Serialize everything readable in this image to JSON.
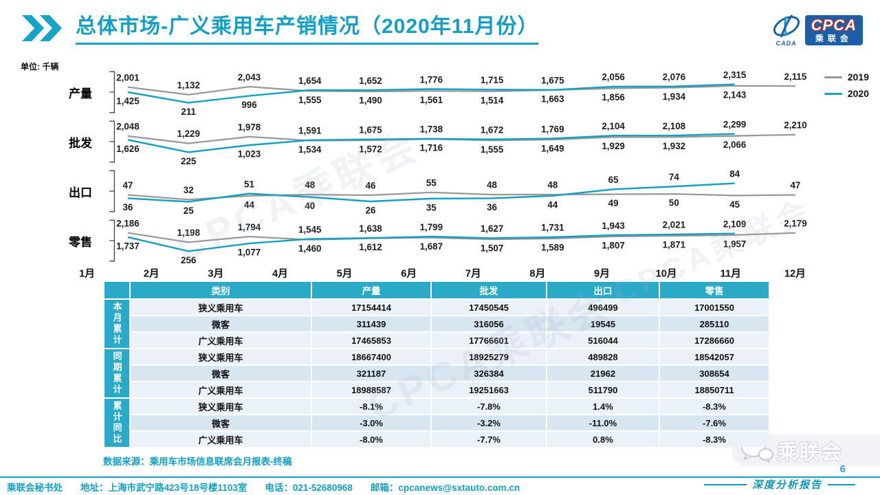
{
  "colors": {
    "accent": "#139fc4",
    "line2019": "#999999",
    "line2020": "#14a0c2",
    "tableHeader": "#2baac8",
    "rowLight": "#eaf2f9",
    "rowMid": "#d8e6f2",
    "logoBlue": "#1b5fa8"
  },
  "header": {
    "title": "总体市场-广义乘用车产销情况（2020年11月份）"
  },
  "logo": {
    "cpca": "CPCA",
    "cn": "乘联会",
    "cada": "CADA"
  },
  "unit_label": "单位: 千辆",
  "legend": [
    {
      "label": "2019",
      "color": "#999999"
    },
    {
      "label": "2020",
      "color": "#14a0c2"
    }
  ],
  "chart_data": {
    "type": "line",
    "ylabel": "千辆",
    "legend_position": "top-right",
    "grid": false,
    "x": [
      "1月",
      "2月",
      "3月",
      "4月",
      "5月",
      "6月",
      "7月",
      "8月",
      "9月",
      "10月",
      "11月",
      "12月"
    ],
    "sections": [
      {
        "name": "产量",
        "id": "production",
        "series": [
          {
            "name": "2019",
            "values": [
              2001,
              1132,
              2043,
              1555,
              1490,
              1561,
              1514,
              1663,
              1856,
              1934,
              2143,
              2115
            ]
          },
          {
            "name": "2020",
            "values": [
              1425,
              211,
              996,
              1654,
              1652,
              1776,
              1715,
              1675,
              2056,
              2076,
              2315
            ]
          }
        ]
      },
      {
        "name": "批发",
        "id": "wholesale",
        "series": [
          {
            "name": "2019",
            "values": [
              2048,
              1229,
              1978,
              1534,
              1572,
              1716,
              1555,
              1649,
              1929,
              1932,
              2066,
              2210
            ]
          },
          {
            "name": "2020",
            "values": [
              1626,
              225,
              1023,
              1591,
              1675,
              1738,
              1672,
              1769,
              2104,
              2108,
              2299
            ]
          }
        ]
      },
      {
        "name": "出口",
        "id": "export",
        "series": [
          {
            "name": "2019",
            "values": [
              47,
              32,
              44,
              48,
              46,
              55,
              48,
              48,
              49,
              50,
              45,
              47
            ]
          },
          {
            "name": "2020",
            "values": [
              36,
              25,
              51,
              40,
              26,
              35,
              36,
              44,
              65,
              74,
              84
            ]
          }
        ]
      },
      {
        "name": "零售",
        "id": "retail",
        "series": [
          {
            "name": "2019",
            "values": [
              2186,
              1198,
              1794,
              1460,
              1612,
              1687,
              1507,
              1589,
              1807,
              1871,
              1957,
              2179
            ]
          },
          {
            "name": "2020",
            "values": [
              1737,
              256,
              1077,
              1545,
              1638,
              1799,
              1627,
              1731,
              1943,
              2021,
              2109
            ]
          }
        ]
      }
    ]
  },
  "table": {
    "headers": [
      "类别",
      "产量",
      "批发",
      "出口",
      "零售"
    ],
    "groups": [
      {
        "label": "本月累计",
        "rows": [
          {
            "category": "狭义乘用车",
            "values": [
              "17154414",
              "17450545",
              "496499",
              "17001550"
            ]
          },
          {
            "category": "微客",
            "values": [
              "311439",
              "316056",
              "19545",
              "285110"
            ]
          },
          {
            "category": "广义乘用车",
            "values": [
              "17465853",
              "17766601",
              "516044",
              "17286660"
            ]
          }
        ]
      },
      {
        "label": "同期累计",
        "rows": [
          {
            "category": "狭义乘用车",
            "values": [
              "18667400",
              "18925279",
              "489828",
              "18542057"
            ]
          },
          {
            "category": "微客",
            "values": [
              "321187",
              "326384",
              "21962",
              "308654"
            ]
          },
          {
            "category": "广义乘用车",
            "values": [
              "18988587",
              "19251663",
              "511790",
              "18850711"
            ]
          }
        ]
      },
      {
        "label": "累计同比",
        "rows": [
          {
            "category": "狭义乘用车",
            "values": [
              "-8.1%",
              "-7.8%",
              "1.4%",
              "-8.3%"
            ]
          },
          {
            "category": "微客",
            "values": [
              "-3.0%",
              "-3.2%",
              "-11.0%",
              "-7.6%"
            ]
          },
          {
            "category": "广义乘用车",
            "values": [
              "-8.0%",
              "-7.7%",
              "0.8%",
              "-8.3%"
            ]
          }
        ]
      }
    ]
  },
  "source_note": "数据来源：乘用车市场信息联席会月报表-终稿",
  "watermark": "CPCA乘联会",
  "wechat_badge": "乘联会",
  "page_number": "6",
  "report_tag": "深度分析报告",
  "footer": {
    "secretariat": "乘联会秘书处",
    "address": "地址：上海市武宁路423号18号楼1103室",
    "phone": "电话：021-52680968",
    "email": "邮箱：cpcanews@sxtauto.com.cn"
  }
}
